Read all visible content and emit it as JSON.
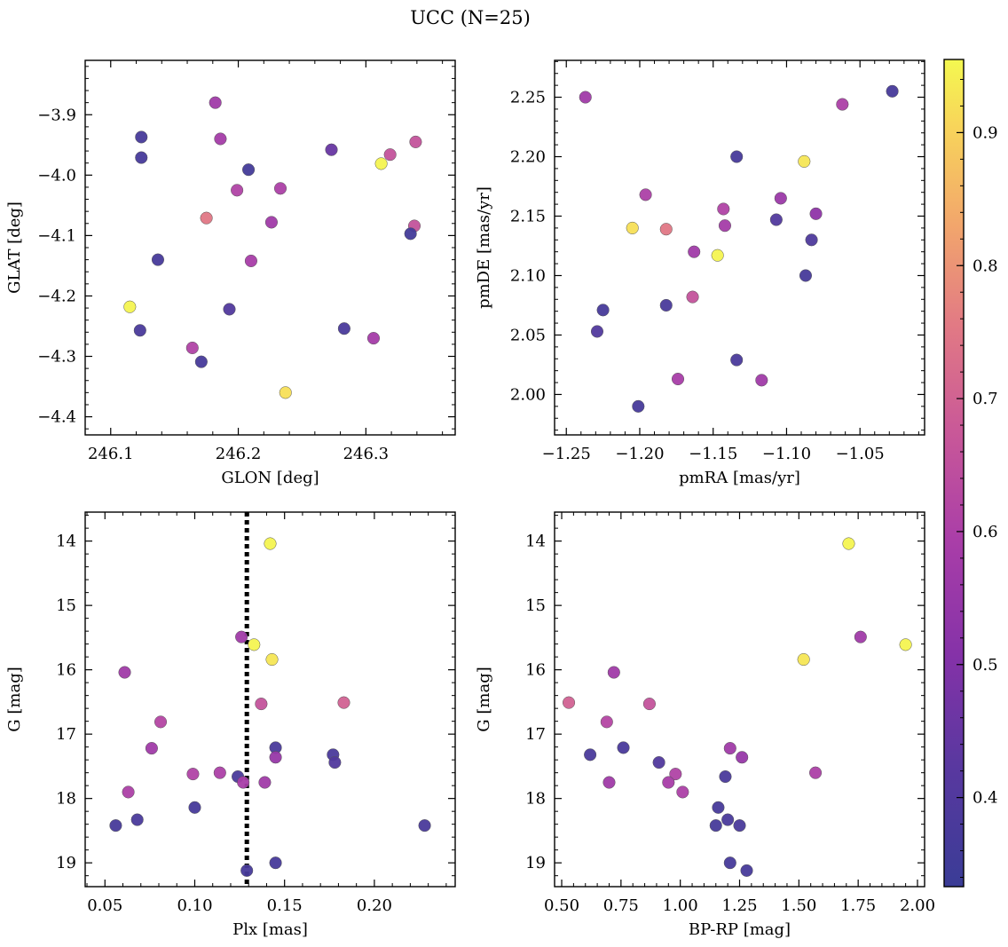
{
  "figure": {
    "title": "UCC (N=25)"
  },
  "colormap": {
    "name": "plasma",
    "range": [
      0.333,
      0.955
    ],
    "ticks": [
      0.4,
      0.5,
      0.6,
      0.7,
      0.8,
      0.9
    ],
    "tick_labels": [
      "0.4",
      "0.5",
      "0.6",
      "0.7",
      "0.8",
      "0.9"
    ]
  },
  "styles": {
    "edge_color": "#555555",
    "vline_color": "#000000"
  },
  "chart_data": [
    {
      "type": "scatter",
      "xlabel": "GLON [deg]",
      "ylabel": "GLAT [deg]",
      "xlim": [
        246.08,
        246.37
      ],
      "ylim": [
        -4.43,
        -3.81
      ],
      "xticks": [
        246.1,
        246.2,
        246.3
      ],
      "xtick_labels": [
        "246.1",
        "246.2",
        "246.3"
      ],
      "yticks": [
        -4.4,
        -4.3,
        -4.2,
        -4.1,
        -4.0,
        -3.9
      ],
      "ytick_labels": [
        "−4.4",
        "−4.3",
        "−4.2",
        "−4.1",
        "−4.0",
        "−3.9"
      ],
      "points": [
        {
          "x": 246.182,
          "y": -3.88,
          "c": 0.57
        },
        {
          "x": 246.124,
          "y": -3.937,
          "c": 0.37
        },
        {
          "x": 246.186,
          "y": -3.94,
          "c": 0.58
        },
        {
          "x": 246.339,
          "y": -3.945,
          "c": 0.66
        },
        {
          "x": 246.273,
          "y": -3.958,
          "c": 0.45
        },
        {
          "x": 246.319,
          "y": -3.966,
          "c": 0.66
        },
        {
          "x": 246.124,
          "y": -3.971,
          "c": 0.37
        },
        {
          "x": 246.312,
          "y": -3.981,
          "c": 0.95
        },
        {
          "x": 246.208,
          "y": -3.991,
          "c": 0.36
        },
        {
          "x": 246.233,
          "y": -4.022,
          "c": 0.6
        },
        {
          "x": 246.199,
          "y": -4.025,
          "c": 0.61
        },
        {
          "x": 246.175,
          "y": -4.071,
          "c": 0.75
        },
        {
          "x": 246.226,
          "y": -4.078,
          "c": 0.57
        },
        {
          "x": 246.338,
          "y": -4.084,
          "c": 0.66
        },
        {
          "x": 246.335,
          "y": -4.097,
          "c": 0.36
        },
        {
          "x": 246.137,
          "y": -4.14,
          "c": 0.37
        },
        {
          "x": 246.21,
          "y": -4.142,
          "c": 0.59
        },
        {
          "x": 246.115,
          "y": -4.218,
          "c": 0.95
        },
        {
          "x": 246.193,
          "y": -4.222,
          "c": 0.4
        },
        {
          "x": 246.283,
          "y": -4.254,
          "c": 0.38
        },
        {
          "x": 246.123,
          "y": -4.257,
          "c": 0.38
        },
        {
          "x": 246.306,
          "y": -4.27,
          "c": 0.58
        },
        {
          "x": 246.164,
          "y": -4.286,
          "c": 0.61
        },
        {
          "x": 246.171,
          "y": -4.309,
          "c": 0.37
        },
        {
          "x": 246.237,
          "y": -4.36,
          "c": 0.92
        }
      ]
    },
    {
      "type": "scatter",
      "xlabel": "pmRA [mas/yr]",
      "ylabel": "pmDE [mas/yr]",
      "xlim": [
        -1.258,
        -1.006
      ],
      "ylim": [
        1.966,
        2.281
      ],
      "xticks": [
        -1.25,
        -1.2,
        -1.15,
        -1.1,
        -1.05
      ],
      "xtick_labels": [
        "−1.25",
        "−1.20",
        "−1.15",
        "−1.10",
        "−1.05"
      ],
      "yticks": [
        2.0,
        2.05,
        2.1,
        2.15,
        2.2,
        2.25
      ],
      "ytick_labels": [
        "2.00",
        "2.05",
        "2.10",
        "2.15",
        "2.20",
        "2.25"
      ],
      "points": [
        {
          "x": -1.237,
          "y": 2.25,
          "c": 0.57
        },
        {
          "x": -1.028,
          "y": 2.255,
          "c": 0.37
        },
        {
          "x": -1.062,
          "y": 2.244,
          "c": 0.6
        },
        {
          "x": -1.134,
          "y": 2.2,
          "c": 0.37
        },
        {
          "x": -1.088,
          "y": 2.196,
          "c": 0.93
        },
        {
          "x": -1.196,
          "y": 2.168,
          "c": 0.6
        },
        {
          "x": -1.104,
          "y": 2.165,
          "c": 0.56
        },
        {
          "x": -1.143,
          "y": 2.156,
          "c": 0.61
        },
        {
          "x": -1.08,
          "y": 2.152,
          "c": 0.53
        },
        {
          "x": -1.107,
          "y": 2.147,
          "c": 0.4
        },
        {
          "x": -1.142,
          "y": 2.142,
          "c": 0.58
        },
        {
          "x": -1.205,
          "y": 2.14,
          "c": 0.92
        },
        {
          "x": -1.182,
          "y": 2.139,
          "c": 0.75
        },
        {
          "x": -1.083,
          "y": 2.13,
          "c": 0.39
        },
        {
          "x": -1.163,
          "y": 2.12,
          "c": 0.57
        },
        {
          "x": -1.147,
          "y": 2.117,
          "c": 0.95
        },
        {
          "x": -1.087,
          "y": 2.1,
          "c": 0.37
        },
        {
          "x": -1.164,
          "y": 2.082,
          "c": 0.66
        },
        {
          "x": -1.182,
          "y": 2.075,
          "c": 0.38
        },
        {
          "x": -1.225,
          "y": 2.071,
          "c": 0.37
        },
        {
          "x": -1.229,
          "y": 2.053,
          "c": 0.4
        },
        {
          "x": -1.134,
          "y": 2.029,
          "c": 0.38
        },
        {
          "x": -1.174,
          "y": 2.013,
          "c": 0.59
        },
        {
          "x": -1.117,
          "y": 2.012,
          "c": 0.57
        },
        {
          "x": -1.201,
          "y": 1.99,
          "c": 0.37
        }
      ]
    },
    {
      "type": "scatter",
      "xlabel": "Plx [mas]",
      "ylabel": "G [mag]",
      "xlim": [
        0.039,
        0.245
      ],
      "ylim": [
        19.37,
        13.55
      ],
      "y_inverted": true,
      "vline": 0.129,
      "xticks": [
        0.05,
        0.1,
        0.15,
        0.2
      ],
      "xtick_labels": [
        "0.05",
        "0.10",
        "0.15",
        "0.20"
      ],
      "yticks": [
        14,
        15,
        16,
        17,
        18,
        19
      ],
      "ytick_labels": [
        "14",
        "15",
        "16",
        "17",
        "18",
        "19"
      ],
      "points": [
        {
          "x": 0.142,
          "y": 14.04,
          "c": 0.95
        },
        {
          "x": 0.126,
          "y": 15.49,
          "c": 0.57
        },
        {
          "x": 0.133,
          "y": 15.61,
          "c": 0.95
        },
        {
          "x": 0.143,
          "y": 15.84,
          "c": 0.93
        },
        {
          "x": 0.061,
          "y": 16.04,
          "c": 0.57
        },
        {
          "x": 0.183,
          "y": 16.51,
          "c": 0.7
        },
        {
          "x": 0.137,
          "y": 16.53,
          "c": 0.66
        },
        {
          "x": 0.081,
          "y": 16.81,
          "c": 0.62
        },
        {
          "x": 0.145,
          "y": 17.21,
          "c": 0.38
        },
        {
          "x": 0.076,
          "y": 17.22,
          "c": 0.57
        },
        {
          "x": 0.177,
          "y": 17.32,
          "c": 0.38
        },
        {
          "x": 0.145,
          "y": 17.36,
          "c": 0.55
        },
        {
          "x": 0.178,
          "y": 17.44,
          "c": 0.4
        },
        {
          "x": 0.114,
          "y": 17.6,
          "c": 0.6
        },
        {
          "x": 0.099,
          "y": 17.62,
          "c": 0.61
        },
        {
          "x": 0.124,
          "y": 17.66,
          "c": 0.38
        },
        {
          "x": 0.127,
          "y": 17.75,
          "c": 0.59
        },
        {
          "x": 0.139,
          "y": 17.75,
          "c": 0.57
        },
        {
          "x": 0.063,
          "y": 17.9,
          "c": 0.6
        },
        {
          "x": 0.1,
          "y": 18.14,
          "c": 0.37
        },
        {
          "x": 0.068,
          "y": 18.33,
          "c": 0.38
        },
        {
          "x": 0.056,
          "y": 18.42,
          "c": 0.37
        },
        {
          "x": 0.228,
          "y": 18.42,
          "c": 0.38
        },
        {
          "x": 0.145,
          "y": 19.0,
          "c": 0.37
        },
        {
          "x": 0.129,
          "y": 19.12,
          "c": 0.37
        }
      ]
    },
    {
      "type": "scatter",
      "xlabel": "BP-RP [mag]",
      "ylabel": "G [mag]",
      "xlim": [
        0.47,
        2.03
      ],
      "ylim": [
        19.37,
        13.55
      ],
      "y_inverted": true,
      "xticks": [
        0.5,
        0.75,
        1.0,
        1.25,
        1.5,
        1.75,
        2.0
      ],
      "xtick_labels": [
        "0.50",
        "0.75",
        "1.00",
        "1.25",
        "1.50",
        "1.75",
        "2.00"
      ],
      "yticks": [
        14,
        15,
        16,
        17,
        18,
        19
      ],
      "ytick_labels": [
        "14",
        "15",
        "16",
        "17",
        "18",
        "19"
      ],
      "points": [
        {
          "x": 1.71,
          "y": 14.04,
          "c": 0.95
        },
        {
          "x": 1.76,
          "y": 15.49,
          "c": 0.57
        },
        {
          "x": 1.95,
          "y": 15.61,
          "c": 0.95
        },
        {
          "x": 1.52,
          "y": 15.84,
          "c": 0.93
        },
        {
          "x": 0.72,
          "y": 16.04,
          "c": 0.57
        },
        {
          "x": 0.53,
          "y": 16.51,
          "c": 0.7
        },
        {
          "x": 0.87,
          "y": 16.53,
          "c": 0.66
        },
        {
          "x": 0.69,
          "y": 16.81,
          "c": 0.62
        },
        {
          "x": 0.76,
          "y": 17.21,
          "c": 0.38
        },
        {
          "x": 1.21,
          "y": 17.22,
          "c": 0.57
        },
        {
          "x": 0.62,
          "y": 17.32,
          "c": 0.38
        },
        {
          "x": 1.26,
          "y": 17.36,
          "c": 0.55
        },
        {
          "x": 0.91,
          "y": 17.44,
          "c": 0.4
        },
        {
          "x": 1.57,
          "y": 17.6,
          "c": 0.6
        },
        {
          "x": 0.98,
          "y": 17.62,
          "c": 0.61
        },
        {
          "x": 1.19,
          "y": 17.66,
          "c": 0.38
        },
        {
          "x": 0.95,
          "y": 17.75,
          "c": 0.59
        },
        {
          "x": 0.7,
          "y": 17.75,
          "c": 0.57
        },
        {
          "x": 1.01,
          "y": 17.9,
          "c": 0.6
        },
        {
          "x": 1.16,
          "y": 18.14,
          "c": 0.37
        },
        {
          "x": 1.2,
          "y": 18.33,
          "c": 0.38
        },
        {
          "x": 1.15,
          "y": 18.42,
          "c": 0.37
        },
        {
          "x": 1.25,
          "y": 18.42,
          "c": 0.38
        },
        {
          "x": 1.21,
          "y": 19.0,
          "c": 0.37
        },
        {
          "x": 1.28,
          "y": 19.12,
          "c": 0.37
        }
      ]
    }
  ]
}
